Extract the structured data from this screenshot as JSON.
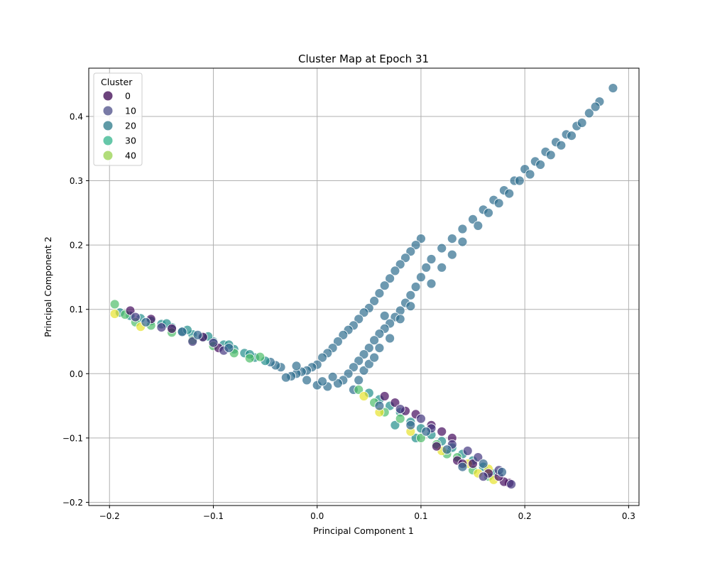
{
  "chart_data": {
    "type": "scatter",
    "title": "Cluster Map at Epoch 31",
    "xlabel": "Principal Component 1",
    "ylabel": "Principal Component 2",
    "xlim": [
      -0.22,
      0.31
    ],
    "ylim": [
      -0.205,
      0.475
    ],
    "xticks": [
      -0.2,
      -0.1,
      0.0,
      0.1,
      0.2,
      0.3
    ],
    "xtick_labels": [
      "−0.2",
      "−0.1",
      "0.0",
      "0.1",
      "0.2",
      "0.3"
    ],
    "yticks": [
      -0.2,
      -0.1,
      0.0,
      0.1,
      0.2,
      0.3,
      0.4
    ],
    "ytick_labels": [
      "−0.2",
      "−0.1",
      "0.0",
      "0.1",
      "0.2",
      "0.3",
      "0.4"
    ],
    "grid": true,
    "legend": {
      "title": "Cluster",
      "placement": "top-left",
      "entries": [
        {
          "label": "0",
          "color": "#5c2f6e"
        },
        {
          "label": "10",
          "color": "#6a6b9c"
        },
        {
          "label": "20",
          "color": "#4e8f9c"
        },
        {
          "label": "30",
          "color": "#55c1a0"
        },
        {
          "label": "40",
          "color": "#a8d96c"
        }
      ]
    },
    "colormap": "viridis",
    "marker_alpha": 0.7,
    "series": [
      {
        "cluster_value": 22,
        "points": [
          [
            0.285,
            0.444
          ],
          [
            0.272,
            0.423
          ],
          [
            0.262,
            0.405
          ],
          [
            0.25,
            0.385
          ],
          [
            0.24,
            0.372
          ],
          [
            0.23,
            0.36
          ],
          [
            0.22,
            0.345
          ],
          [
            0.21,
            0.33
          ],
          [
            0.2,
            0.318
          ],
          [
            0.19,
            0.3
          ],
          [
            0.18,
            0.285
          ],
          [
            0.17,
            0.27
          ],
          [
            0.16,
            0.255
          ],
          [
            0.15,
            0.24
          ],
          [
            0.14,
            0.225
          ],
          [
            0.13,
            0.21
          ],
          [
            0.12,
            0.195
          ],
          [
            0.11,
            0.178
          ],
          [
            0.105,
            0.165
          ],
          [
            0.1,
            0.15
          ],
          [
            0.095,
            0.135
          ],
          [
            0.09,
            0.122
          ],
          [
            0.085,
            0.11
          ],
          [
            0.08,
            0.098
          ],
          [
            0.075,
            0.088
          ],
          [
            0.07,
            0.078
          ],
          [
            0.065,
            0.07
          ],
          [
            0.06,
            0.062
          ],
          [
            0.055,
            0.052
          ],
          [
            0.05,
            0.04
          ],
          [
            0.045,
            0.03
          ],
          [
            0.04,
            0.02
          ],
          [
            0.035,
            0.01
          ],
          [
            0.03,
            0.0
          ],
          [
            0.025,
            -0.01
          ],
          [
            0.02,
            -0.015
          ],
          [
            0.01,
            -0.02
          ],
          [
            0.0,
            -0.018
          ],
          [
            0.1,
            0.21
          ],
          [
            0.095,
            0.2
          ],
          [
            0.09,
            0.19
          ],
          [
            0.085,
            0.18
          ],
          [
            0.08,
            0.17
          ],
          [
            0.075,
            0.16
          ],
          [
            0.07,
            0.148
          ],
          [
            0.065,
            0.137
          ],
          [
            0.06,
            0.125
          ],
          [
            0.055,
            0.113
          ],
          [
            0.05,
            0.102
          ],
          [
            0.045,
            0.095
          ],
          [
            0.04,
            0.085
          ],
          [
            0.035,
            0.075
          ],
          [
            0.03,
            0.068
          ],
          [
            0.025,
            0.06
          ],
          [
            0.02,
            0.05
          ],
          [
            0.015,
            0.04
          ],
          [
            0.01,
            0.032
          ],
          [
            0.005,
            0.025
          ],
          [
            0.0,
            0.014
          ],
          [
            -0.005,
            0.01
          ],
          [
            -0.01,
            0.005
          ],
          [
            -0.015,
            0.003
          ],
          [
            -0.02,
            0.0
          ],
          [
            -0.025,
            -0.004
          ],
          [
            -0.03,
            -0.006
          ],
          [
            -0.035,
            0.01
          ],
          [
            -0.04,
            0.013
          ],
          [
            -0.045,
            0.018
          ],
          [
            -0.02,
            0.012
          ],
          [
            -0.01,
            -0.01
          ],
          [
            0.005,
            -0.012
          ],
          [
            0.015,
            -0.005
          ],
          [
            0.035,
            -0.025
          ],
          [
            0.04,
            -0.01
          ],
          [
            0.045,
            0.005
          ],
          [
            0.05,
            0.015
          ],
          [
            0.055,
            0.025
          ],
          [
            0.06,
            0.04
          ],
          [
            0.07,
            0.055
          ],
          [
            0.065,
            0.09
          ],
          [
            0.08,
            0.085
          ],
          [
            0.09,
            0.105
          ],
          [
            0.11,
            0.14
          ],
          [
            0.12,
            0.165
          ],
          [
            0.13,
            0.185
          ],
          [
            0.14,
            0.205
          ],
          [
            0.155,
            0.23
          ],
          [
            0.165,
            0.25
          ],
          [
            0.175,
            0.265
          ],
          [
            0.185,
            0.28
          ],
          [
            0.195,
            0.3
          ],
          [
            0.205,
            0.31
          ],
          [
            0.215,
            0.325
          ],
          [
            0.225,
            0.34
          ],
          [
            0.235,
            0.355
          ],
          [
            0.245,
            0.37
          ],
          [
            0.255,
            0.39
          ],
          [
            0.268,
            0.415
          ]
        ]
      },
      {
        "cluster_value": 30,
        "points": [
          [
            -0.19,
            0.095
          ],
          [
            -0.18,
            0.09
          ],
          [
            -0.17,
            0.086
          ],
          [
            -0.16,
            0.082
          ],
          [
            -0.15,
            0.077
          ],
          [
            -0.14,
            0.072
          ],
          [
            -0.13,
            0.066
          ],
          [
            -0.12,
            0.061
          ],
          [
            -0.11,
            0.056
          ],
          [
            -0.1,
            0.05
          ],
          [
            -0.09,
            0.045
          ],
          [
            -0.08,
            0.038
          ],
          [
            -0.07,
            0.032
          ],
          [
            -0.06,
            0.025
          ],
          [
            -0.05,
            0.02
          ],
          [
            -0.145,
            0.078
          ],
          [
            -0.125,
            0.068
          ],
          [
            -0.105,
            0.058
          ],
          [
            -0.085,
            0.045
          ],
          [
            -0.065,
            0.03
          ],
          [
            0.05,
            -0.03
          ],
          [
            0.06,
            -0.04
          ],
          [
            0.07,
            -0.05
          ],
          [
            0.08,
            -0.06
          ],
          [
            0.09,
            -0.075
          ],
          [
            0.1,
            -0.085
          ],
          [
            0.11,
            -0.095
          ],
          [
            0.12,
            -0.105
          ],
          [
            0.13,
            -0.115
          ],
          [
            0.14,
            -0.125
          ],
          [
            0.15,
            -0.135
          ],
          [
            0.16,
            -0.145
          ],
          [
            0.17,
            -0.155
          ],
          [
            0.075,
            -0.08
          ],
          [
            0.095,
            -0.1
          ]
        ]
      },
      {
        "cluster_value": 40,
        "points": [
          [
            -0.195,
            0.108
          ],
          [
            -0.185,
            0.092
          ],
          [
            -0.175,
            0.08
          ],
          [
            -0.16,
            0.075
          ],
          [
            -0.14,
            0.064
          ],
          [
            -0.12,
            0.052
          ],
          [
            -0.1,
            0.043
          ],
          [
            -0.08,
            0.032
          ],
          [
            -0.065,
            0.024
          ],
          [
            -0.055,
            0.026
          ],
          [
            0.04,
            -0.025
          ],
          [
            0.055,
            -0.045
          ],
          [
            0.065,
            -0.06
          ],
          [
            0.08,
            -0.07
          ],
          [
            0.1,
            -0.1
          ],
          [
            0.115,
            -0.11
          ],
          [
            0.125,
            -0.125
          ],
          [
            0.135,
            -0.13
          ],
          [
            0.15,
            -0.15
          ],
          [
            0.165,
            -0.16
          ]
        ]
      },
      {
        "cluster_value": 48,
        "points": [
          [
            -0.195,
            0.093
          ],
          [
            -0.17,
            0.073
          ],
          [
            0.045,
            -0.035
          ],
          [
            0.06,
            -0.06
          ],
          [
            0.09,
            -0.09
          ],
          [
            0.12,
            -0.12
          ],
          [
            0.145,
            -0.14
          ],
          [
            0.165,
            -0.148
          ],
          [
            0.17,
            -0.165
          ],
          [
            0.155,
            -0.155
          ]
        ]
      },
      {
        "cluster_value": 2,
        "points": [
          [
            -0.18,
            0.098
          ],
          [
            -0.16,
            0.085
          ],
          [
            -0.14,
            0.07
          ],
          [
            -0.11,
            0.057
          ],
          [
            -0.095,
            0.04
          ],
          [
            0.065,
            -0.035
          ],
          [
            0.075,
            -0.045
          ],
          [
            0.085,
            -0.058
          ],
          [
            0.095,
            -0.063
          ],
          [
            0.11,
            -0.08
          ],
          [
            0.12,
            -0.09
          ],
          [
            0.13,
            -0.1
          ],
          [
            0.115,
            -0.113
          ],
          [
            0.135,
            -0.135
          ],
          [
            0.14,
            -0.14
          ],
          [
            0.15,
            -0.14
          ],
          [
            0.165,
            -0.155
          ],
          [
            0.185,
            -0.17
          ],
          [
            0.18,
            -0.168
          ],
          [
            0.175,
            -0.16
          ]
        ]
      },
      {
        "cluster_value": 10,
        "points": [
          [
            -0.175,
            0.088
          ],
          [
            -0.15,
            0.072
          ],
          [
            -0.12,
            0.05
          ],
          [
            -0.1,
            0.048
          ],
          [
            -0.09,
            0.036
          ],
          [
            0.08,
            -0.055
          ],
          [
            0.1,
            -0.07
          ],
          [
            0.11,
            -0.085
          ],
          [
            0.13,
            -0.11
          ],
          [
            0.145,
            -0.12
          ],
          [
            0.155,
            -0.13
          ],
          [
            0.16,
            -0.16
          ],
          [
            0.175,
            -0.15
          ],
          [
            0.187,
            -0.172
          ]
        ]
      },
      {
        "cluster_value": 20,
        "points": [
          [
            -0.165,
            0.08
          ],
          [
            -0.13,
            0.065
          ],
          [
            -0.115,
            0.06
          ],
          [
            -0.085,
            0.04
          ],
          [
            0.06,
            -0.05
          ],
          [
            0.09,
            -0.08
          ],
          [
            0.105,
            -0.09
          ],
          [
            0.125,
            -0.118
          ],
          [
            0.14,
            -0.145
          ],
          [
            0.16,
            -0.14
          ],
          [
            0.178,
            -0.153
          ]
        ]
      }
    ]
  }
}
